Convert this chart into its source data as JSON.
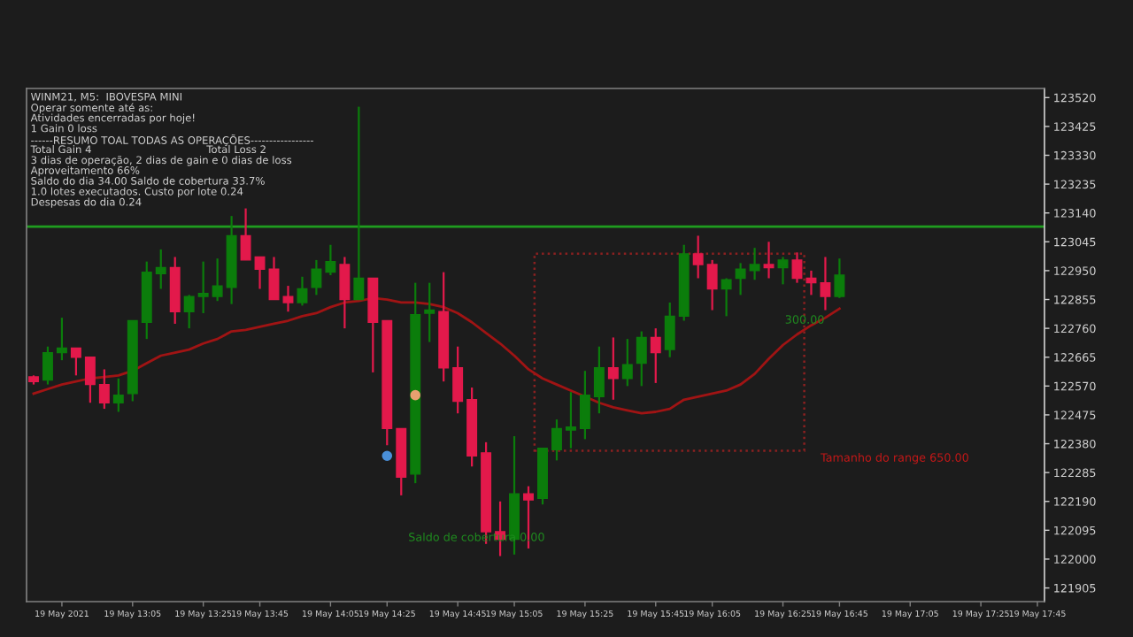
{
  "chart_data": {
    "type": "candlestick",
    "categories": [
      null,
      null,
      "19 May 2021",
      null,
      null,
      null,
      null,
      "19 May 13:05",
      null,
      null,
      null,
      null,
      "19 May 13:25",
      null,
      null,
      null,
      "19 May 13:45",
      null,
      null,
      null,
      null,
      "19 May 14:05",
      null,
      null,
      null,
      "19 May 14:25",
      null,
      null,
      null,
      null,
      "19 May 14:45",
      null,
      null,
      null,
      "19 May 15:05",
      null,
      null,
      null,
      null,
      "19 May 15:25",
      null,
      null,
      null,
      null,
      "19 May 15:45",
      null,
      null,
      null,
      "19 May 16:05",
      null,
      null,
      null,
      null,
      "19 May 16:25",
      null,
      null,
      null,
      "19 May 16:45",
      null,
      null,
      null,
      null,
      "19 May 17:05",
      null,
      null,
      null,
      null,
      "19 May 17:25",
      null,
      null,
      null,
      "19 May 17:45"
    ],
    "ohlc": [
      [
        122600,
        122605,
        122575,
        122585
      ],
      [
        122590,
        122700,
        122575,
        122680
      ],
      [
        122680,
        122795,
        122655,
        122695
      ],
      [
        122695,
        122695,
        122605,
        122665
      ],
      [
        122665,
        122665,
        122515,
        122575
      ],
      [
        122575,
        122625,
        122495,
        122515
      ],
      [
        122515,
        122595,
        122485,
        122540
      ],
      [
        122545,
        122785,
        122520,
        122785
      ],
      [
        122780,
        122980,
        122725,
        122945
      ],
      [
        122940,
        123020,
        122890,
        122960
      ],
      [
        122960,
        122995,
        122775,
        122815
      ],
      [
        122815,
        122870,
        122760,
        122865
      ],
      [
        122865,
        122980,
        122810,
        122875
      ],
      [
        122865,
        122990,
        122850,
        122900
      ],
      [
        122895,
        123130,
        122840,
        123065
      ],
      [
        123065,
        123155,
        122985,
        122985
      ],
      [
        122995,
        122995,
        122890,
        122955
      ],
      [
        122955,
        122995,
        122855,
        122855
      ],
      [
        122865,
        122900,
        122815,
        122845
      ],
      [
        122845,
        122930,
        122835,
        122890
      ],
      [
        122895,
        122985,
        122870,
        122955
      ],
      [
        122945,
        123035,
        122935,
        122980
      ],
      [
        122970,
        122995,
        122760,
        122855
      ],
      [
        122855,
        123490,
        122855,
        122925
      ],
      [
        122925,
        122925,
        122615,
        122780
      ],
      [
        122785,
        122785,
        122375,
        122430
      ],
      [
        122430,
        122430,
        122210,
        122270
      ],
      [
        122280,
        122910,
        122250,
        122805
      ],
      [
        122810,
        122910,
        122715,
        122820
      ],
      [
        122815,
        122945,
        122585,
        122630
      ],
      [
        122630,
        122700,
        122480,
        122520
      ],
      [
        122525,
        122565,
        122305,
        122340
      ],
      [
        122350,
        122385,
        122050,
        122090
      ],
      [
        122090,
        122190,
        122010,
        122065
      ],
      [
        122065,
        122405,
        122015,
        122215
      ],
      [
        122215,
        122240,
        122035,
        122195
      ],
      [
        122200,
        122365,
        122180,
        122365
      ],
      [
        122360,
        122460,
        122325,
        122430
      ],
      [
        122425,
        122550,
        122365,
        122435
      ],
      [
        122430,
        122620,
        122395,
        122540
      ],
      [
        122535,
        122700,
        122480,
        122630
      ],
      [
        122630,
        122730,
        122525,
        122595
      ],
      [
        122595,
        122725,
        122570,
        122640
      ],
      [
        122645,
        122750,
        122570,
        122730
      ],
      [
        122730,
        122760,
        122580,
        122680
      ],
      [
        122690,
        122845,
        122665,
        122800
      ],
      [
        122800,
        123035,
        122785,
        123005
      ],
      [
        123005,
        123065,
        122925,
        122970
      ],
      [
        122970,
        122985,
        122820,
        122890
      ],
      [
        122890,
        122925,
        122800,
        122920
      ],
      [
        122925,
        122975,
        122870,
        122955
      ],
      [
        122950,
        123025,
        122920,
        122970
      ],
      [
        122970,
        123045,
        122925,
        122960
      ],
      [
        122960,
        122995,
        122905,
        122985
      ],
      [
        122985,
        123010,
        122910,
        122925
      ],
      [
        122925,
        122950,
        122870,
        122910
      ],
      [
        122910,
        122995,
        122820,
        122865
      ],
      [
        122865,
        122990,
        122860,
        122935
      ],
      null,
      null,
      null,
      null,
      null,
      null,
      null,
      null,
      null,
      null,
      null,
      null,
      null,
      null
    ],
    "colors": [
      "#e3194b",
      "#0b7d0b",
      "#0b7d0b",
      "#e3194b",
      "#e3194b",
      "#e3194b",
      "#0b7d0b",
      "#0b7d0b",
      "#0b7d0b",
      "#0b7d0b",
      "#e3194b",
      "#0b7d0b",
      "#0b7d0b",
      "#0b7d0b",
      "#0b7d0b",
      "#e3194b",
      "#e3194b",
      "#e3194b",
      "#e3194b",
      "#0b7d0b",
      "#0b7d0b",
      "#0b7d0b",
      "#e3194b",
      "#0b7d0b",
      "#e3194b",
      "#e3194b",
      "#e3194b",
      "#0b7d0b",
      "#0b7d0b",
      "#e3194b",
      "#e3194b",
      "#e3194b",
      "#e3194b",
      "#e3194b",
      "#0b7d0b",
      "#e3194b",
      "#0b7d0b",
      "#0b7d0b",
      "#0b7d0b",
      "#0b7d0b",
      "#0b7d0b",
      "#e3194b",
      "#0b7d0b",
      "#0b7d0b",
      "#e3194b",
      "#0b7d0b",
      "#0b7d0b",
      "#e3194b",
      "#e3194b",
      "#0b7d0b",
      "#0b7d0b",
      "#0b7d0b",
      "#e3194b",
      "#0b7d0b",
      "#e3194b",
      "#e3194b",
      "#e3194b",
      "#0b7d0b",
      null,
      null,
      null,
      null,
      null,
      null,
      null,
      null,
      null,
      null,
      null,
      null,
      null,
      null
    ],
    "series": [
      {
        "type": "line",
        "color": "#a01414",
        "values": [
          122545,
          122560,
          122575,
          122585,
          122595,
          122600,
          122605,
          122620,
          122645,
          122670,
          122680,
          122690,
          122710,
          122725,
          122750,
          122755,
          122765,
          122775,
          122785,
          122800,
          122810,
          122830,
          122845,
          122850,
          122860,
          122855,
          122845,
          122845,
          122840,
          122830,
          122810,
          122780,
          122745,
          122710,
          122670,
          122625,
          122595,
          122575,
          122555,
          122535,
          122515,
          122500,
          122490,
          122480,
          122485,
          122495,
          122525,
          122535,
          122545,
          122555,
          122575,
          122610,
          122660,
          122705,
          122740,
          122770,
          122795,
          122825,
          null,
          null,
          null,
          null,
          null,
          null,
          null,
          null,
          null,
          null,
          null,
          null,
          null,
          null
        ]
      },
      {
        "type": "scatter",
        "marker": "circle",
        "values": [
          null,
          null,
          null,
          null,
          null,
          null,
          null,
          null,
          null,
          null,
          null,
          null,
          null,
          null,
          null,
          null,
          null,
          null,
          null,
          null,
          null,
          null,
          null,
          null,
          null,
          122340,
          null,
          122540,
          null,
          null,
          null,
          null,
          null,
          null,
          null,
          null,
          null,
          null,
          null,
          null,
          null,
          null,
          null,
          null,
          null,
          null,
          null,
          null,
          null,
          null,
          null,
          null,
          null,
          null,
          null,
          null,
          null,
          null,
          null,
          null,
          null,
          null,
          null,
          null,
          null,
          null,
          null,
          null,
          null,
          null,
          null,
          null
        ],
        "colors": [
          null,
          null,
          null,
          null,
          null,
          null,
          null,
          null,
          null,
          null,
          null,
          null,
          null,
          null,
          null,
          null,
          null,
          null,
          null,
          null,
          null,
          null,
          null,
          null,
          null,
          "#4a90d9",
          null,
          "#e8a070",
          null,
          null,
          null,
          null,
          null,
          null,
          null,
          null,
          null,
          null,
          null,
          null,
          null,
          null,
          null,
          null,
          null,
          null,
          null,
          null,
          null,
          null,
          null,
          null,
          null,
          null,
          null,
          null,
          null,
          null,
          null,
          null,
          null,
          null,
          null,
          null,
          null,
          null,
          null,
          null,
          null,
          null,
          null,
          null
        ]
      }
    ],
    "ref_lines": [
      {
        "axis": "y",
        "value": 123095,
        "color": "#1f9d1f"
      }
    ],
    "ylim": [
      121860,
      123550
    ],
    "yticks": [
      121905,
      122000,
      122095,
      122190,
      122285,
      122380,
      122475,
      122570,
      122665,
      122760,
      122855,
      122950,
      123045,
      123140,
      123235,
      123330,
      123425,
      123520
    ],
    "grid": false,
    "legend": false,
    "annotations": [
      "WINM21, M5:  IBOVESPA MINI",
      "Operar somente até as:",
      "Atividades encerradas por hoje!",
      "1 Gain 0 loss",
      "------RESUMO TOAL TODAS AS OPERAÇÕES-----------------",
      "Total Gain 4                                   Total Loss 2",
      "3 dias de operação, 2 dias de gain e 0 dias de loss",
      "Aproveitamento 66%",
      "Saldo do dia 34.00 Saldo de cobertura 33.7%",
      "1.0 lotes executados. Custo por lote 0.24",
      "Despesas do dia 0.24",
      "300.00",
      "Tamanho do range 650.00",
      "Saldo de cobertura 0.00"
    ]
  }
}
